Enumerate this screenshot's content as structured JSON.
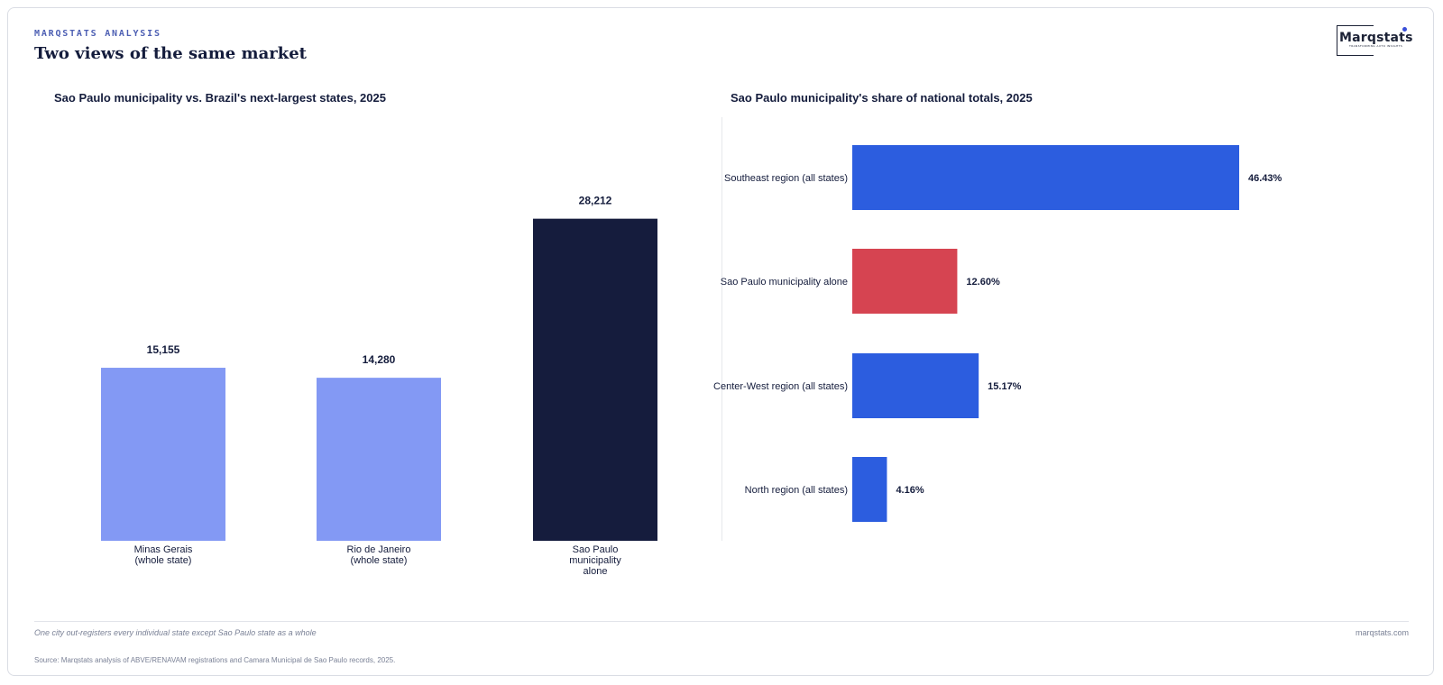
{
  "header": {
    "eyebrow": "MARQSTATS ANALYSIS",
    "title": "Two views of the same market"
  },
  "logo": {
    "wordmark": "Marqstats",
    "tagline": "TRANSFORMING AUTO INSIGHTS"
  },
  "colors": {
    "accent_dark": "#151c3d",
    "accent_light": "#8399f4",
    "accent_blue": "#2c5ddf",
    "accent_red": "#d64451"
  },
  "chart_data": [
    {
      "type": "bar",
      "title": "Sao Paulo municipality vs. Brazil's next-largest states, 2025",
      "categories": [
        [
          "Minas Gerais",
          "(whole state)"
        ],
        [
          "Rio de Janeiro",
          "(whole state)"
        ],
        [
          "Sao Paulo",
          "municipality",
          "alone"
        ]
      ],
      "values": [
        15155,
        14280,
        28212
      ],
      "value_labels": [
        "15,155",
        "14,280",
        "28,212"
      ],
      "colors": [
        "#8399f4",
        "#8399f4",
        "#151c3d"
      ],
      "ylim": [
        0,
        30000
      ],
      "grid": false,
      "legend": "none"
    },
    {
      "type": "bar",
      "orientation": "horizontal",
      "title": "Sao Paulo municipality's share of national totals, 2025",
      "categories": [
        "Southeast region (all states)",
        "Sao Paulo municipality alone",
        "Center-West region (all states)",
        "North region (all states)"
      ],
      "values": [
        46.43,
        12.6,
        15.17,
        4.16
      ],
      "value_labels": [
        "46.43%",
        "12.60%",
        "15.17%",
        "4.16%"
      ],
      "colors": [
        "#2c5ddf",
        "#d64451",
        "#2c5ddf",
        "#2c5ddf"
      ],
      "xlim": [
        0,
        50
      ],
      "grid": false,
      "legend": "none"
    }
  ],
  "footer": {
    "note": "One city out-registers every individual state except Sao Paulo state as a whole",
    "site": "marqstats.com",
    "source": "Source: Marqstats analysis of ABVE/RENAVAM registrations and Camara Municipal de Sao Paulo records, 2025."
  }
}
